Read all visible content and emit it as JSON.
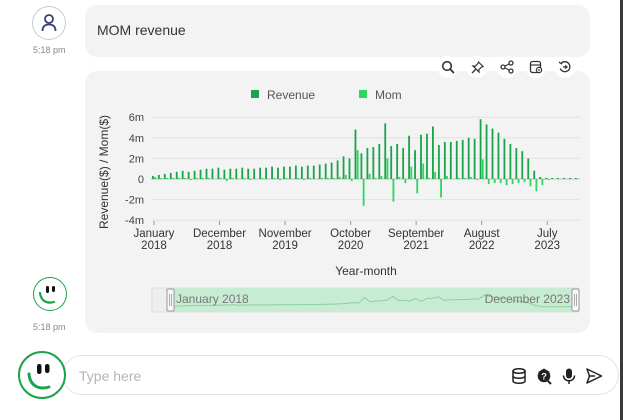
{
  "conversation": {
    "user_message": {
      "text": "MOM revenue",
      "time": "5:18 pm"
    },
    "bot_message": {
      "time": "5:18 pm",
      "toolbar": [
        "search-icon",
        "pin-icon",
        "share-icon",
        "database-settings-icon",
        "history-icon"
      ]
    }
  },
  "chart_data": {
    "type": "bar",
    "x_tick_labels": [
      [
        "January",
        "2018"
      ],
      [
        "December",
        "2018"
      ],
      [
        "November",
        "2019"
      ],
      [
        "October",
        "2020"
      ],
      [
        "September",
        "2021"
      ],
      [
        "August",
        "2022"
      ],
      [
        "July",
        "2023"
      ]
    ],
    "y_tick_labels": [
      "6m",
      "4m",
      "2m",
      "0",
      "-2m",
      "-4m"
    ],
    "xlabel": "Year-month",
    "ylabel": "Revenue($) / Mom($)",
    "ylim": [
      -4,
      7
    ],
    "x": [
      "2018-01",
      "2018-02",
      "2018-03",
      "2018-04",
      "2018-05",
      "2018-06",
      "2018-07",
      "2018-08",
      "2018-09",
      "2018-10",
      "2018-11",
      "2018-12",
      "2019-01",
      "2019-02",
      "2019-03",
      "2019-04",
      "2019-05",
      "2019-06",
      "2019-07",
      "2019-08",
      "2019-09",
      "2019-10",
      "2019-11",
      "2019-12",
      "2020-01",
      "2020-02",
      "2020-03",
      "2020-04",
      "2020-05",
      "2020-06",
      "2020-07",
      "2020-08",
      "2020-09",
      "2020-10",
      "2020-11",
      "2020-12",
      "2021-01",
      "2021-02",
      "2021-03",
      "2021-04",
      "2021-05",
      "2021-06",
      "2021-07",
      "2021-08",
      "2021-09",
      "2021-10",
      "2021-11",
      "2021-12",
      "2022-01",
      "2022-02",
      "2022-03",
      "2022-04",
      "2022-05",
      "2022-06",
      "2022-07",
      "2022-08",
      "2022-09",
      "2022-10",
      "2022-11",
      "2022-12",
      "2023-01",
      "2023-02",
      "2023-03",
      "2023-04",
      "2023-05",
      "2023-06",
      "2023-07",
      "2023-08",
      "2023-09",
      "2023-10",
      "2023-11",
      "2023-12"
    ],
    "series": [
      {
        "name": "Revenue",
        "color": "#1aa34a",
        "values": [
          0.3,
          0.4,
          0.5,
          0.6,
          0.7,
          0.8,
          0.7,
          0.8,
          0.9,
          1.0,
          1.0,
          1.1,
          0.9,
          1.0,
          1.0,
          1.1,
          1.0,
          1.0,
          1.1,
          1.1,
          1.2,
          1.1,
          1.2,
          1.2,
          1.3,
          1.2,
          1.3,
          1.3,
          1.4,
          1.5,
          1.6,
          1.8,
          2.2,
          2.0,
          4.8,
          2.5,
          3.0,
          3.1,
          3.4,
          5.4,
          3.2,
          3.4,
          3.0,
          4.2,
          2.8,
          4.3,
          4.4,
          5.1,
          3.3,
          3.6,
          3.6,
          3.7,
          3.8,
          4.0,
          3.9,
          5.8,
          5.3,
          4.9,
          4.5,
          3.9,
          3.4,
          3.0,
          2.7,
          2.0,
          0.8,
          0.2,
          0.1,
          0.1,
          0.1,
          0.1,
          0.1,
          0.1
        ]
      },
      {
        "name": "Mom",
        "color": "#29d65e",
        "values": [
          0.2,
          0.1,
          0.1,
          0.1,
          0.1,
          0.1,
          -0.1,
          0.1,
          0.1,
          0.1,
          0.0,
          0.1,
          -0.2,
          0.1,
          0.0,
          0.1,
          -0.1,
          0.0,
          0.1,
          0.0,
          0.1,
          -0.1,
          0.1,
          0.0,
          0.1,
          -0.1,
          0.1,
          0.0,
          0.1,
          0.1,
          0.1,
          0.2,
          0.4,
          -0.2,
          2.8,
          -2.6,
          0.5,
          0.1,
          0.3,
          2.0,
          -2.2,
          0.2,
          -0.4,
          1.2,
          -1.4,
          1.5,
          0.1,
          0.7,
          -1.8,
          0.3,
          0.0,
          0.1,
          0.1,
          0.2,
          -0.1,
          1.9,
          -0.5,
          -0.4,
          -0.4,
          -0.6,
          -0.5,
          -0.4,
          -0.3,
          -0.7,
          -1.2,
          -0.6,
          -0.1,
          0.0,
          0.0,
          0.0,
          0.0,
          0.0
        ]
      }
    ],
    "legend_position": "top-center",
    "grid": true,
    "range_slider": {
      "start_label": "January 2018",
      "end_label": "December 2023"
    }
  },
  "input": {
    "placeholder": "Type here",
    "icons": [
      "database-icon",
      "help-icon",
      "microphone-icon",
      "send-icon"
    ]
  },
  "colors": {
    "accent": "#1aa34a",
    "accent_light": "#29d65e",
    "bubble": "#f3f3f3"
  }
}
